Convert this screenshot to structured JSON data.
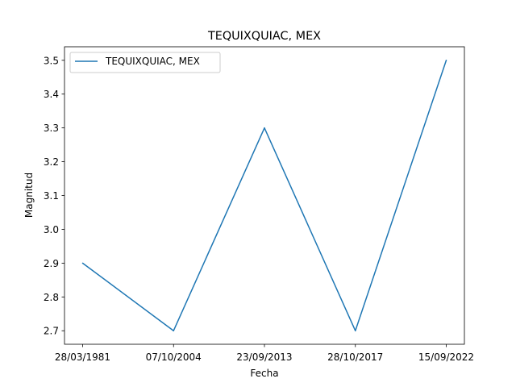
{
  "chart_data": {
    "type": "line",
    "title": "TEQUIXQUIAC, MEX",
    "xlabel": "Fecha",
    "ylabel": "Magnitud",
    "categories": [
      "28/03/1981",
      "07/10/2004",
      "23/09/2013",
      "28/10/2017",
      "15/09/2022"
    ],
    "series": [
      {
        "name": "TEQUIXQUIAC, MEX",
        "values": [
          2.9,
          2.7,
          3.3,
          2.7,
          3.5
        ],
        "color": "#1f77b4"
      }
    ],
    "yticks": [
      "2.7",
      "2.8",
      "2.9",
      "3.0",
      "3.1",
      "3.2",
      "3.3",
      "3.4",
      "3.5"
    ],
    "ylim": [
      2.66,
      3.54
    ],
    "grid": false,
    "legend": "top-left"
  }
}
